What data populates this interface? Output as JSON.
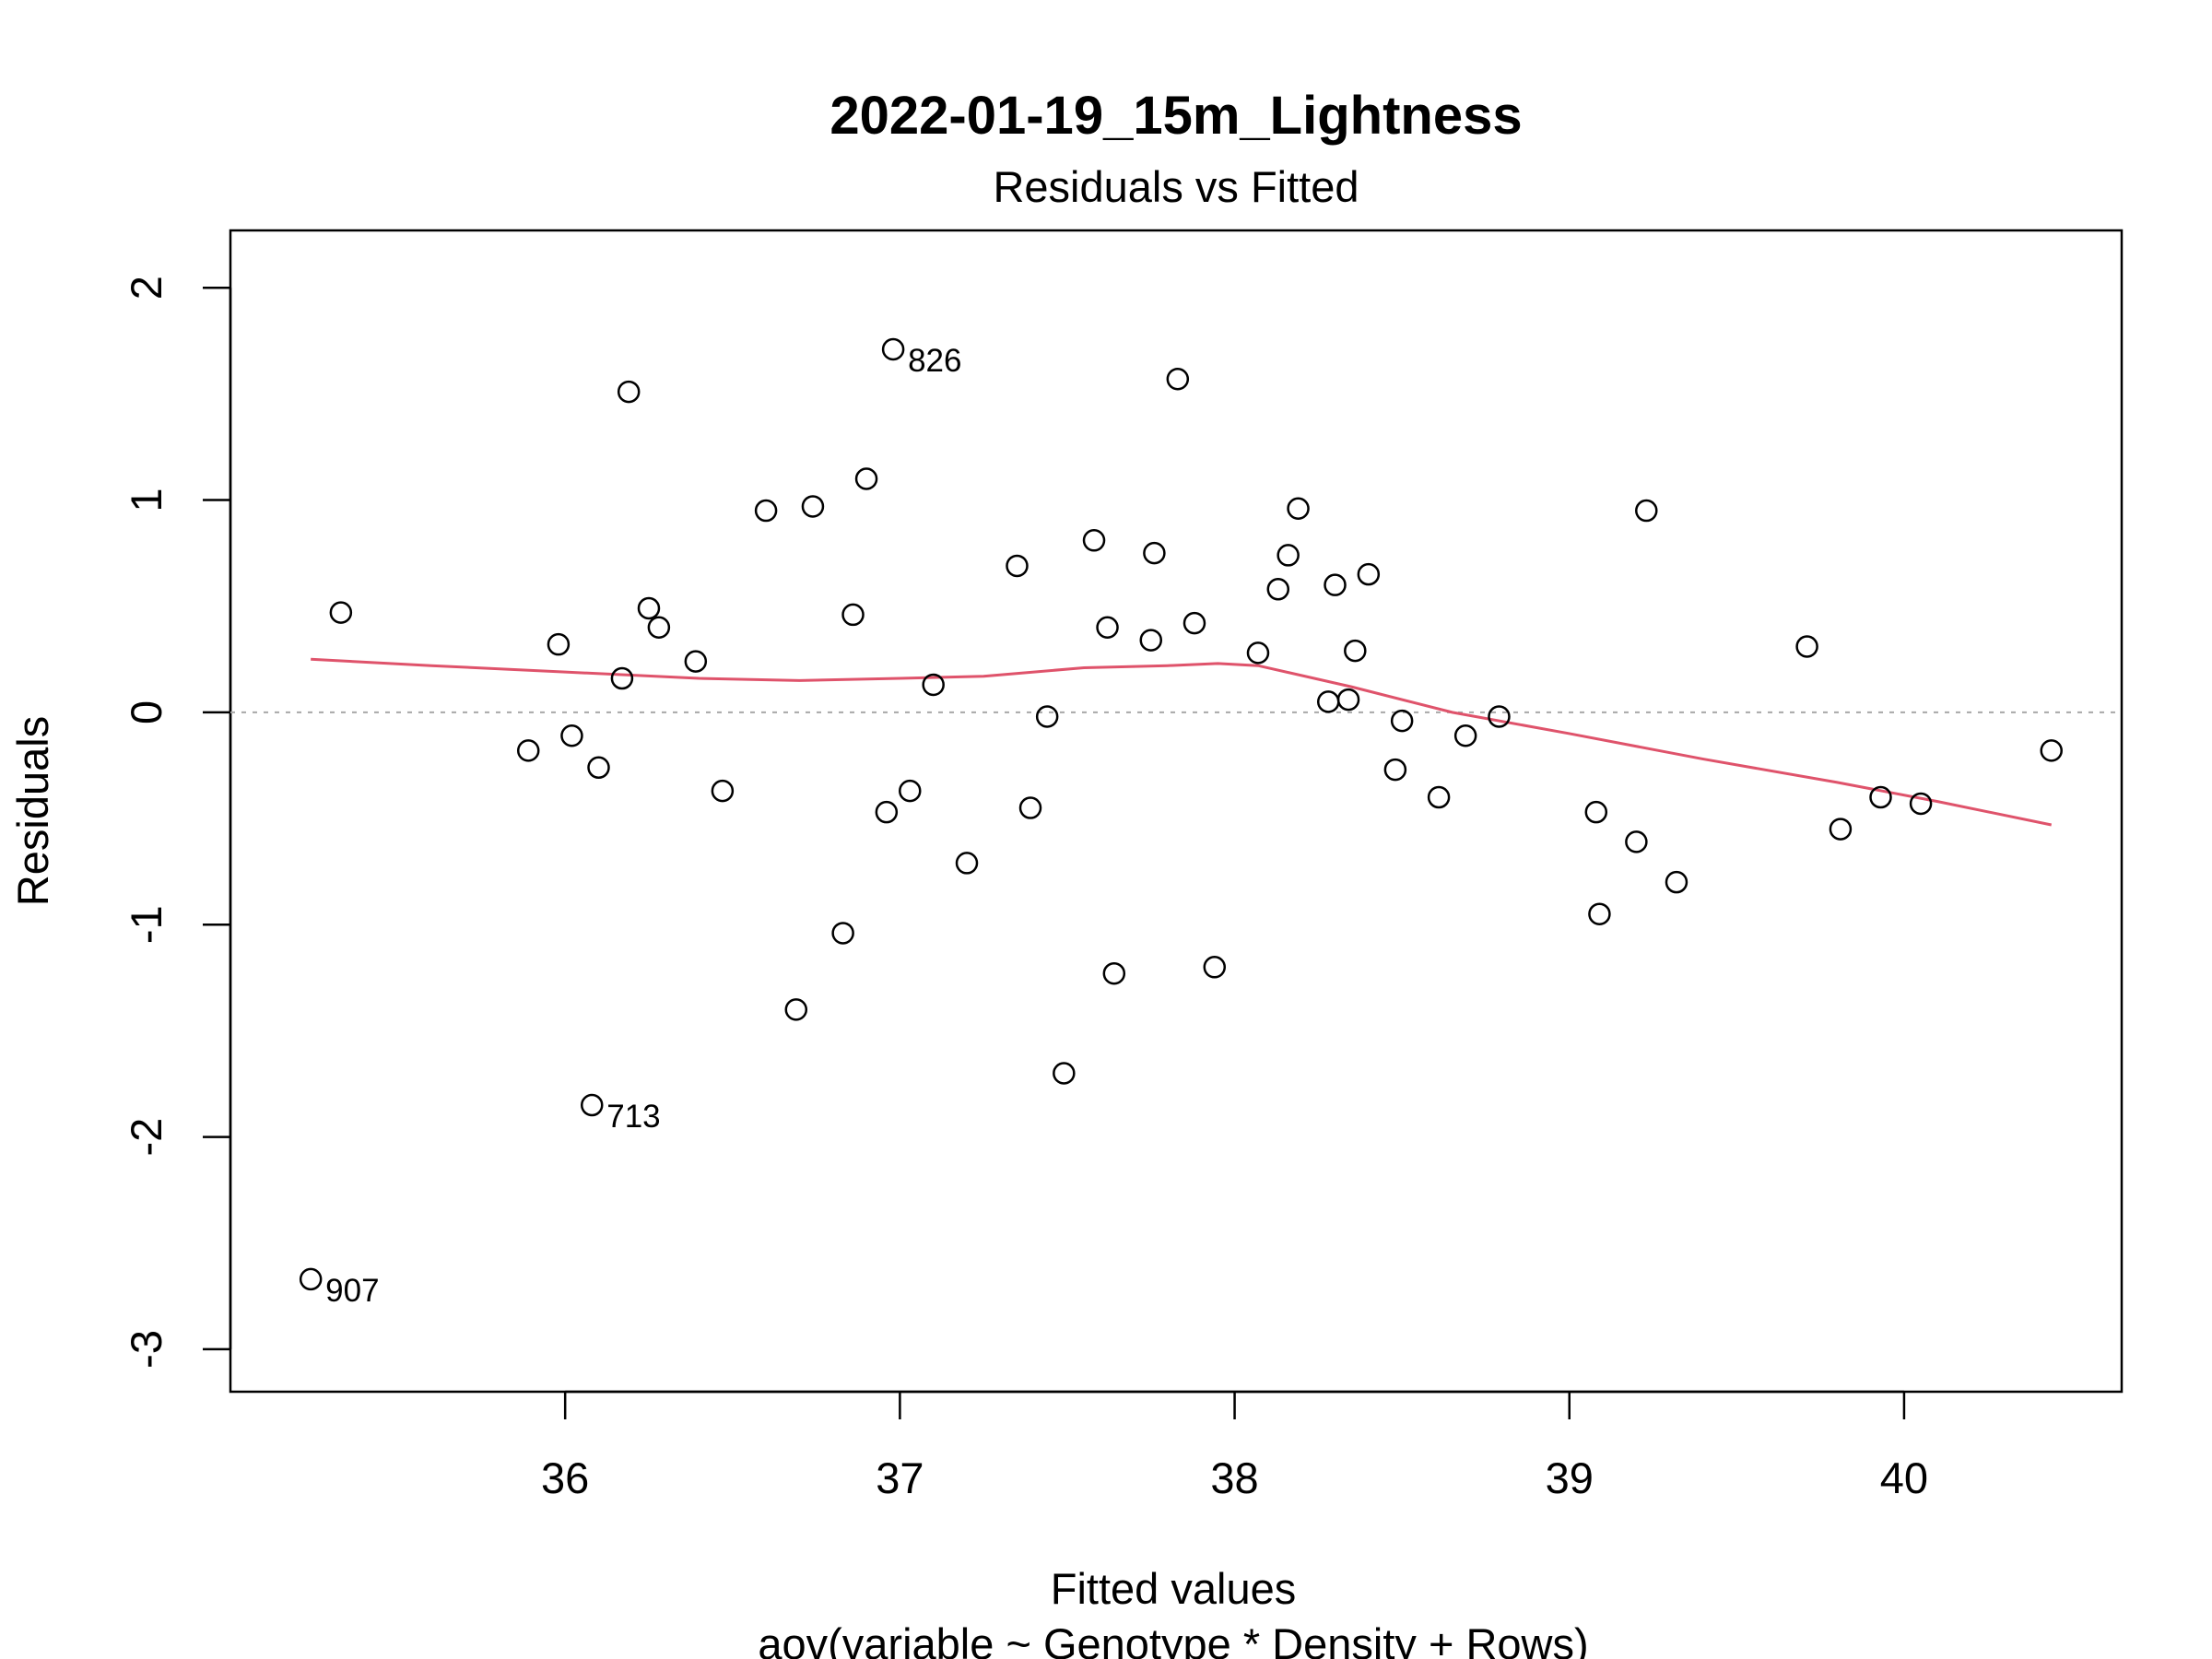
{
  "chart_data": {
    "type": "scatter",
    "title": "2022-01-19_15m_Lightness",
    "subtitle": "Residuals vs Fitted",
    "xlabel": "Fitted values",
    "caption": "aov(variable ~ Genotype * Density + Rows)",
    "ylabel": "Residuals",
    "xlim": [
      35.0,
      40.65
    ],
    "ylim": [
      -3.2,
      2.27
    ],
    "xticks": [
      36,
      37,
      38,
      39,
      40
    ],
    "yticks": [
      -3,
      -2,
      -1,
      0,
      1,
      2
    ],
    "reference_line_y": 0,
    "colors": {
      "points": "#000000",
      "smooth": "#DF536B",
      "refline": "#A8A8A8"
    },
    "points": [
      {
        "x": 35.24,
        "y": -2.67,
        "label": "907"
      },
      {
        "x": 35.33,
        "y": 0.47
      },
      {
        "x": 35.89,
        "y": -0.18
      },
      {
        "x": 35.98,
        "y": 0.32
      },
      {
        "x": 36.02,
        "y": -0.11
      },
      {
        "x": 36.08,
        "y": -1.85,
        "label": "713"
      },
      {
        "x": 36.1,
        "y": -0.26
      },
      {
        "x": 36.17,
        "y": 0.16
      },
      {
        "x": 36.19,
        "y": 1.51
      },
      {
        "x": 36.25,
        "y": 0.49
      },
      {
        "x": 36.28,
        "y": 0.4
      },
      {
        "x": 36.39,
        "y": 0.24
      },
      {
        "x": 36.47,
        "y": -0.37
      },
      {
        "x": 36.6,
        "y": 0.95
      },
      {
        "x": 36.69,
        "y": -1.4
      },
      {
        "x": 36.74,
        "y": 0.97
      },
      {
        "x": 36.83,
        "y": -1.04
      },
      {
        "x": 36.86,
        "y": 0.46
      },
      {
        "x": 36.9,
        "y": 1.1
      },
      {
        "x": 36.96,
        "y": -0.47
      },
      {
        "x": 36.98,
        "y": 1.71,
        "label": "826"
      },
      {
        "x": 37.03,
        "y": -0.37
      },
      {
        "x": 37.1,
        "y": 0.13
      },
      {
        "x": 37.2,
        "y": -0.71
      },
      {
        "x": 37.35,
        "y": 0.69
      },
      {
        "x": 37.39,
        "y": -0.45
      },
      {
        "x": 37.44,
        "y": -0.02
      },
      {
        "x": 37.49,
        "y": -1.7
      },
      {
        "x": 37.58,
        "y": 0.81
      },
      {
        "x": 37.62,
        "y": 0.4
      },
      {
        "x": 37.64,
        "y": -1.23
      },
      {
        "x": 37.75,
        "y": 0.34
      },
      {
        "x": 37.76,
        "y": 0.75
      },
      {
        "x": 37.83,
        "y": 1.57
      },
      {
        "x": 37.88,
        "y": 0.42
      },
      {
        "x": 37.94,
        "y": -1.2
      },
      {
        "x": 38.07,
        "y": 0.28
      },
      {
        "x": 38.13,
        "y": 0.58
      },
      {
        "x": 38.16,
        "y": 0.74
      },
      {
        "x": 38.19,
        "y": 0.96
      },
      {
        "x": 38.28,
        "y": 0.05
      },
      {
        "x": 38.3,
        "y": 0.6
      },
      {
        "x": 38.34,
        "y": 0.06
      },
      {
        "x": 38.36,
        "y": 0.29
      },
      {
        "x": 38.4,
        "y": 0.65
      },
      {
        "x": 38.48,
        "y": -0.27
      },
      {
        "x": 38.5,
        "y": -0.04
      },
      {
        "x": 38.61,
        "y": -0.4
      },
      {
        "x": 38.69,
        "y": -0.11
      },
      {
        "x": 38.79,
        "y": -0.02
      },
      {
        "x": 39.08,
        "y": -0.47
      },
      {
        "x": 39.09,
        "y": -0.95
      },
      {
        "x": 39.2,
        "y": -0.61
      },
      {
        "x": 39.23,
        "y": 0.95
      },
      {
        "x": 39.32,
        "y": -0.8
      },
      {
        "x": 39.71,
        "y": 0.31
      },
      {
        "x": 39.81,
        "y": -0.55
      },
      {
        "x": 39.93,
        "y": -0.4
      },
      {
        "x": 40.05,
        "y": -0.43
      },
      {
        "x": 40.44,
        "y": -0.18
      }
    ],
    "smooth": [
      {
        "x": 35.24,
        "y": 0.25
      },
      {
        "x": 35.6,
        "y": 0.22
      },
      {
        "x": 36.0,
        "y": 0.19
      },
      {
        "x": 36.4,
        "y": 0.16
      },
      {
        "x": 36.7,
        "y": 0.15
      },
      {
        "x": 37.0,
        "y": 0.16
      },
      {
        "x": 37.25,
        "y": 0.17
      },
      {
        "x": 37.55,
        "y": 0.21
      },
      {
        "x": 37.8,
        "y": 0.22
      },
      {
        "x": 37.95,
        "y": 0.23
      },
      {
        "x": 38.07,
        "y": 0.22
      },
      {
        "x": 38.35,
        "y": 0.12
      },
      {
        "x": 38.65,
        "y": 0.0
      },
      {
        "x": 39.0,
        "y": -0.1
      },
      {
        "x": 39.4,
        "y": -0.22
      },
      {
        "x": 39.8,
        "y": -0.33
      },
      {
        "x": 40.1,
        "y": -0.42
      },
      {
        "x": 40.44,
        "y": -0.53
      }
    ]
  }
}
